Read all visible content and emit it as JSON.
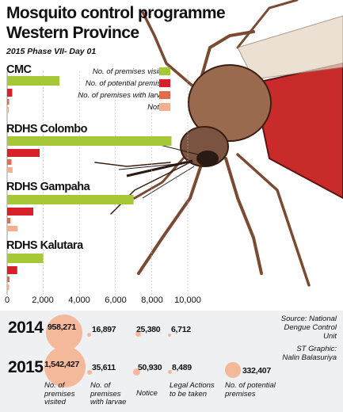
{
  "title_line1": "Mosquito control programme",
  "title_line2": "Western Province",
  "subtitle": "2015 Phase VII- Day 01",
  "legend": [
    {
      "label": "No. of premises visited",
      "color": "#a6c837"
    },
    {
      "label": "No. of potential premises",
      "color": "#d8202a"
    },
    {
      "label": "No. of premises with larvae",
      "color": "#e36a4a"
    },
    {
      "label": "Notice",
      "color": "#f3b08c"
    }
  ],
  "chart_data": {
    "type": "bar",
    "orientation": "horizontal",
    "categories": [
      "CMC",
      "RDHS Colombo",
      "RDHS Gampaha",
      "RDHS Kalutara"
    ],
    "series": [
      {
        "name": "No. of premises visited",
        "values": [
          2900,
          9100,
          7000,
          2000
        ]
      },
      {
        "name": "No. of potential premises",
        "values": [
          280,
          1800,
          1450,
          560
        ]
      },
      {
        "name": "No. of premises with larvae",
        "values": [
          110,
          240,
          180,
          130
        ]
      },
      {
        "name": "Notice",
        "values": [
          90,
          300,
          580,
          110
        ]
      }
    ],
    "xlim": [
      0,
      11000
    ],
    "xticks": [
      "0",
      "2,000",
      "4,000",
      "6,000",
      "8,000",
      "10,000"
    ],
    "xtick_values": [
      0,
      2000,
      4000,
      6000,
      8000,
      10000
    ]
  },
  "summary": {
    "years": [
      {
        "year": "2014",
        "values": [
          "958,271",
          "16,897",
          "25,380",
          "6,712"
        ]
      },
      {
        "year": "2015",
        "values": [
          "1,542,427",
          "35,611",
          "50,930",
          "8,489",
          "332,407"
        ]
      }
    ],
    "captions": [
      "No. of premises visited",
      "No. of premises with larvae",
      "Notice",
      "Legal Actions to be taken",
      "No. of potential premises"
    ]
  },
  "source": {
    "line1": "Source: National",
    "line2": "Dengue Control",
    "line3": "Unit",
    "graphic1": "ST Graphic:",
    "graphic2": "Nalin Balasuriya"
  }
}
